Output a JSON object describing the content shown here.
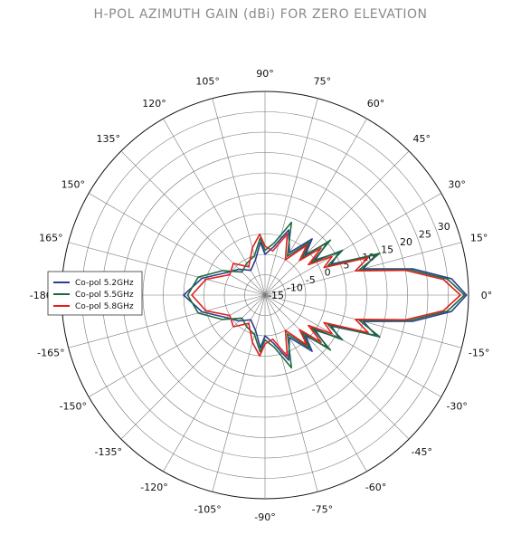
{
  "chart_data": {
    "type": "polar-line",
    "title": "H-POL AZIMUTH GAIN (dBi) FOR ZERO ELEVATION",
    "angle_unit": "degrees",
    "angle_ticks": [
      "0°",
      "15°",
      "30°",
      "45°",
      "60°",
      "75°",
      "90°",
      "105°",
      "120°",
      "135°",
      "150°",
      "165°",
      "-180°",
      "-165°",
      "-150°",
      "-135°",
      "-120°",
      "-105°",
      "-90°",
      "-75°",
      "-60°",
      "-45°",
      "-30°",
      "-15°"
    ],
    "angle_tick_values": [
      0,
      15,
      30,
      45,
      60,
      75,
      90,
      105,
      120,
      135,
      150,
      165,
      180,
      -165,
      -150,
      -135,
      -120,
      -105,
      -90,
      -75,
      -60,
      -45,
      -30,
      -15
    ],
    "radial_ticks": [
      -15,
      -10,
      -5,
      0,
      5,
      10,
      15,
      20,
      25,
      30
    ],
    "radial_tick_labels": [
      "-15",
      "-10",
      "-5",
      "0",
      "5",
      "10",
      "15",
      "20",
      "25",
      "30"
    ],
    "radial_range": [
      -15,
      35
    ],
    "grid": true,
    "legend_position": "left",
    "series": [
      {
        "name": "Co-pol 5.2GHz",
        "color": "#2a3f8f",
        "points": [
          [
            -180,
            5
          ],
          [
            -165,
            1
          ],
          [
            -150,
            -4
          ],
          [
            -135,
            -6
          ],
          [
            -120,
            -8
          ],
          [
            -105,
            -6
          ],
          [
            -95,
            -2
          ],
          [
            -90,
            -5
          ],
          [
            -80,
            -3
          ],
          [
            -70,
            2
          ],
          [
            -60,
            -3
          ],
          [
            -50,
            3
          ],
          [
            -45,
            -1
          ],
          [
            -40,
            5
          ],
          [
            -35,
            0
          ],
          [
            -30,
            6
          ],
          [
            -25,
            3
          ],
          [
            -20,
            14
          ],
          [
            -15,
            10
          ],
          [
            -10,
            22
          ],
          [
            -5,
            31
          ],
          [
            0,
            34.5
          ],
          [
            5,
            31
          ],
          [
            10,
            22
          ],
          [
            15,
            10
          ],
          [
            20,
            14
          ],
          [
            25,
            3
          ],
          [
            30,
            6
          ],
          [
            35,
            0
          ],
          [
            40,
            5
          ],
          [
            45,
            -1
          ],
          [
            50,
            3
          ],
          [
            60,
            -3
          ],
          [
            70,
            2
          ],
          [
            80,
            -3
          ],
          [
            90,
            -5
          ],
          [
            95,
            -2
          ],
          [
            105,
            -6
          ],
          [
            120,
            -8
          ],
          [
            135,
            -6
          ],
          [
            150,
            -4
          ],
          [
            165,
            1
          ],
          [
            180,
            5
          ]
        ]
      },
      {
        "name": "Co-pol 5.5GHz",
        "color": "#1e6b3a",
        "points": [
          [
            -180,
            4
          ],
          [
            -165,
            2
          ],
          [
            -150,
            -3
          ],
          [
            -135,
            -7
          ],
          [
            -120,
            -6
          ],
          [
            -105,
            -5
          ],
          [
            -95,
            -1
          ],
          [
            -90,
            -4
          ],
          [
            -80,
            -2
          ],
          [
            -70,
            4
          ],
          [
            -60,
            -4
          ],
          [
            -50,
            2
          ],
          [
            -45,
            -2
          ],
          [
            -40,
            6
          ],
          [
            -35,
            -1
          ],
          [
            -30,
            7
          ],
          [
            -25,
            2
          ],
          [
            -20,
            15
          ],
          [
            -15,
            9
          ],
          [
            -10,
            21
          ],
          [
            -5,
            30
          ],
          [
            0,
            34
          ],
          [
            5,
            30
          ],
          [
            10,
            21
          ],
          [
            15,
            9
          ],
          [
            20,
            15
          ],
          [
            25,
            2
          ],
          [
            30,
            7
          ],
          [
            35,
            -1
          ],
          [
            40,
            6
          ],
          [
            45,
            -2
          ],
          [
            50,
            2
          ],
          [
            60,
            -4
          ],
          [
            70,
            4
          ],
          [
            80,
            -2
          ],
          [
            90,
            -4
          ],
          [
            95,
            -1
          ],
          [
            105,
            -5
          ],
          [
            120,
            -6
          ],
          [
            135,
            -7
          ],
          [
            150,
            -3
          ],
          [
            165,
            2
          ],
          [
            180,
            4
          ]
        ]
      },
      {
        "name": "Co-pol 5.8GHz",
        "color": "#e02020",
        "points": [
          [
            -180,
            3
          ],
          [
            -165,
            0
          ],
          [
            -150,
            -5
          ],
          [
            -135,
            -4
          ],
          [
            -120,
            -7
          ],
          [
            -105,
            -3
          ],
          [
            -95,
            0
          ],
          [
            -90,
            -3
          ],
          [
            -80,
            -4
          ],
          [
            -70,
            1
          ],
          [
            -60,
            -5
          ],
          [
            -50,
            1
          ],
          [
            -45,
            -3
          ],
          [
            -40,
            3
          ],
          [
            -35,
            -2
          ],
          [
            -30,
            4
          ],
          [
            -25,
            1
          ],
          [
            -20,
            12
          ],
          [
            -15,
            8
          ],
          [
            -10,
            20
          ],
          [
            -5,
            29
          ],
          [
            0,
            33
          ],
          [
            5,
            29
          ],
          [
            10,
            20
          ],
          [
            15,
            8
          ],
          [
            20,
            12
          ],
          [
            25,
            1
          ],
          [
            30,
            4
          ],
          [
            35,
            -2
          ],
          [
            40,
            3
          ],
          [
            45,
            -3
          ],
          [
            50,
            1
          ],
          [
            60,
            -5
          ],
          [
            70,
            1
          ],
          [
            80,
            -4
          ],
          [
            90,
            -3
          ],
          [
            95,
            0
          ],
          [
            105,
            -3
          ],
          [
            120,
            -7
          ],
          [
            135,
            -4
          ],
          [
            150,
            -5
          ],
          [
            165,
            0
          ],
          [
            180,
            3
          ]
        ]
      }
    ]
  }
}
